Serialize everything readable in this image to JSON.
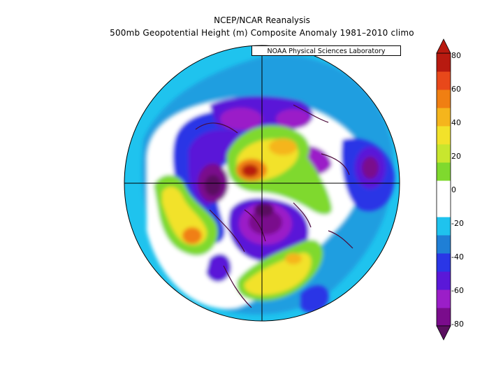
{
  "header": {
    "title": "NCEP/NCAR Reanalysis",
    "subtitle": "500mb Geopotential Height (m) Composite Anomaly 1981–2010 climo",
    "credit": "NOAA Physical Sciences Laboratory"
  },
  "colorbar": {
    "labels": [
      "80",
      "60",
      "40",
      "20",
      "0",
      "-20",
      "-40",
      "-60",
      "-80"
    ],
    "colors": [
      "#7a0c8c",
      "#9b1ec8",
      "#5a18d8",
      "#2a36e6",
      "#1f7fd6",
      "#1fc3ee",
      "#ffffff",
      "#ffffff",
      "#7fd92e",
      "#c8e62e",
      "#f2e22a",
      "#f5b51c",
      "#f07f12",
      "#e8481a",
      "#b81a10"
    ],
    "bottom_color": "#5a1060",
    "top_color": "#b81a10"
  },
  "map": {
    "projection": "north-polar-stereographic",
    "background_color": "#1fc3ee"
  }
}
